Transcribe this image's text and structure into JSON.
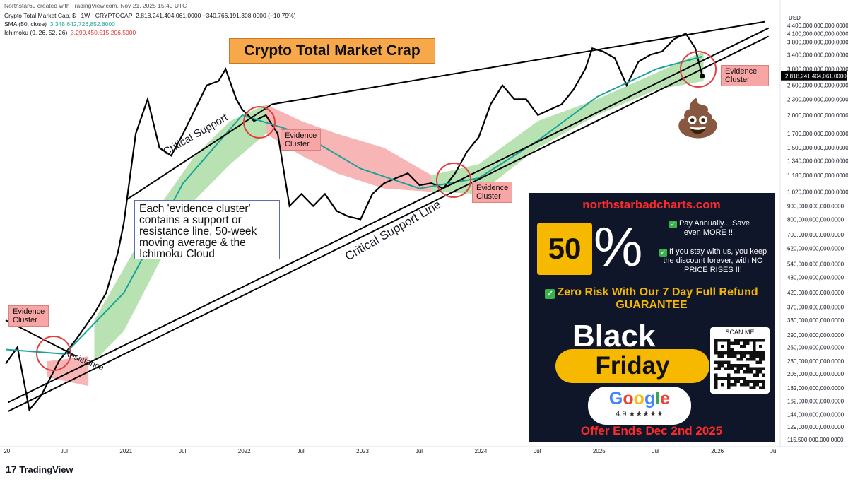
{
  "header": {
    "credit": "Northstar69 created with TradingView.com, Nov 21, 2025 15:49 UTC",
    "symbol_line": "Crypto Total Market Cap, $ · 1W · CRYPTOCAP",
    "symbol_values": "2,818,241,404,061.0000  −340,766,191,308.0000 (−10.79%)",
    "sma_label": "SMA (50, close)",
    "sma_value": "3,348,642,726,852.8000",
    "ichimoku_label": "Ichimoku (9, 26, 52, 26)",
    "ichimoku_value": "3,290,450,515,206.5000"
  },
  "title": "Crypto Total Market Crap",
  "annotations": {
    "evidence_1": "Evidence\nCluster",
    "evidence_2": "Evidence\nCluster",
    "evidence_3": "Evidence\nCluster",
    "evidence_4": "Evidence\nCluster",
    "critical_support": "Critical Support",
    "critical_support_line": "Critical Support Line",
    "resistance": "Resistance",
    "note": "Each 'evidence cluster' contains a support or resistance line, 50-week moving average & the Ichimoku Cloud"
  },
  "ad": {
    "url": "northstarbadcharts.com",
    "percent_number": "50",
    "percent_sign": "%",
    "point1": "Pay Annually... Save even MORE !!!",
    "point2": "If you stay with us, you keep the discount forever, with NO PRICE RISES !!!",
    "risk": "Zero Risk With Our 7 Day Full Refund GUARANTEE",
    "black": "Black",
    "friday": "Friday",
    "google": "Google",
    "rating": "4.9 ★★★★★",
    "scan": "SCAN ME",
    "offer": "Offer Ends Dec 2nd 2025"
  },
  "poo_emoji": "💩",
  "footer": {
    "brand": "TradingView"
  },
  "colors": {
    "price": "#000000",
    "sma": "#17a398",
    "cloud_bull": "#a8dba0",
    "cloud_bear": "#f6a3a3",
    "circle": "#e04040"
  },
  "chart_data": {
    "type": "line",
    "y_scale": "log",
    "currency": "USD",
    "x_ticks": [
      "20",
      "Jul",
      "2021",
      "Jul",
      "2022",
      "Jul",
      "2023",
      "Jul",
      "2024",
      "Jul",
      "2025",
      "Jul",
      "2026",
      "Jul"
    ],
    "y_ticks": [
      "4,400,000,000,000.0000",
      "4,100,000,000,000.0000",
      "3,800,000,000,000.0000",
      "3,400,000,000,000.0000",
      "3,000,000,000,000.0000",
      "2,600,000,000,000.0000",
      "2,300,000,000,000.0000",
      "2,000,000,000,000.0000",
      "1,700,000,000,000.0000",
      "1,500,000,000,000.0000",
      "1,340,000,000,000.0000",
      "1,180,000,000,000.0000",
      "1,020,000,000,000.0000",
      "900,000,000,000.0000",
      "800,000,000,000.0000",
      "700,000,000,000.0000",
      "620,000,000,000.0000",
      "540,000,000,000.0000",
      "480,000,000,000.0000",
      "420,000,000,000.0000",
      "370,000,000,000.0000",
      "330,000,000,000.0000",
      "290,000,000,000.0000",
      "260,000,000,000.0000",
      "230,000,000,000.0000",
      "206,000,000,000.0000",
      "182,000,000,000.0000",
      "162,000,000,000.0000",
      "144,000,000,000.0000",
      "129,000,000,000.0000",
      "115,500,000,000.0000"
    ],
    "current_price_label": "2,818,241,404,061.0000",
    "series": [
      {
        "name": "Crypto Total Market Cap",
        "x": [
          2020.0,
          2020.1,
          2020.2,
          2020.3,
          2020.45,
          2020.6,
          2020.75,
          2020.85,
          2020.95,
          2021.0,
          2021.1,
          2021.2,
          2021.3,
          2021.4,
          2021.5,
          2021.6,
          2021.7,
          2021.8,
          2021.86,
          2021.95,
          2022.0,
          2022.1,
          2022.2,
          2022.3,
          2022.4,
          2022.5,
          2022.6,
          2022.7,
          2022.8,
          2022.9,
          2023.0,
          2023.1,
          2023.2,
          2023.3,
          2023.4,
          2023.5,
          2023.6,
          2023.7,
          2023.8,
          2023.9,
          2024.0,
          2024.1,
          2024.2,
          2024.3,
          2024.4,
          2024.5,
          2024.6,
          2024.7,
          2024.8,
          2024.9,
          2024.96,
          2025.05,
          2025.15,
          2025.25,
          2025.35,
          2025.45,
          2025.55,
          2025.65,
          2025.75,
          2025.83,
          2025.89
        ],
        "y": [
          225,
          260,
          150,
          170,
          230,
          280,
          350,
          420,
          600,
          780,
          1700,
          2300,
          1500,
          1400,
          1700,
          2100,
          2600,
          2700,
          3000,
          2300,
          2100,
          1900,
          2000,
          1700,
          900,
          1000,
          900,
          1000,
          860,
          820,
          800,
          1000,
          1100,
          1150,
          1200,
          1080,
          1100,
          1050,
          1200,
          1450,
          1650,
          2200,
          2600,
          2300,
          2300,
          2000,
          2100,
          2200,
          2500,
          3000,
          3600,
          3500,
          3300,
          2600,
          3200,
          3400,
          3500,
          3900,
          4100,
          3600,
          2818
        ]
      },
      {
        "name": "SMA (50, close)",
        "x": [
          2020.0,
          2020.5,
          2021.0,
          2021.5,
          2022.0,
          2022.5,
          2023.0,
          2023.5,
          2024.0,
          2024.5,
          2025.0,
          2025.5,
          2025.89
        ],
        "y": [
          255,
          245,
          420,
          1100,
          2000,
          1700,
          1250,
          1050,
          1150,
          1600,
          2350,
          3000,
          3350
        ]
      }
    ],
    "trendlines": [
      "Critical Support",
      "Critical Support Line",
      "Resistance"
    ]
  }
}
